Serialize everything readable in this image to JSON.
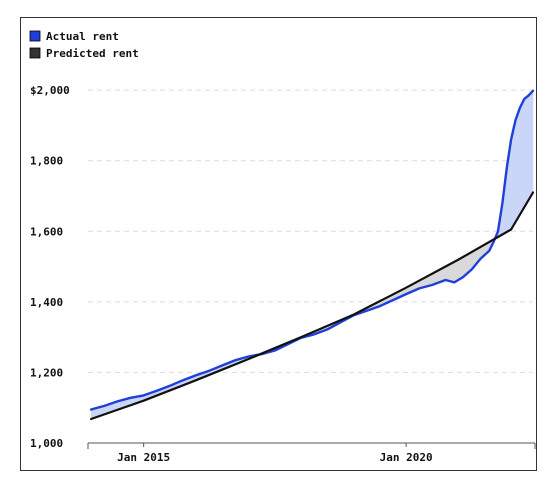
{
  "chart_data": {
    "type": "area",
    "title": "",
    "xlabel": "",
    "ylabel": "",
    "x_start": "Jan 2013",
    "x_end": "Jan 2023",
    "x_ticks": [
      {
        "date": "Jan 2015",
        "label": "Jan 2015"
      },
      {
        "date": "Jan 2020",
        "label": "Jan 2020"
      }
    ],
    "y_ticks": [
      {
        "value": 1000,
        "label": "1,000"
      },
      {
        "value": 1200,
        "label": "1,200"
      },
      {
        "value": 1400,
        "label": "1,400"
      },
      {
        "value": 1600,
        "label": "1,600"
      },
      {
        "value": 1800,
        "label": "1,800"
      },
      {
        "value": 2000,
        "label": "$2,000"
      }
    ],
    "ylim": [
      1000,
      2040
    ],
    "grid": "horizontal dashed",
    "legend_position": "top-left",
    "series": [
      {
        "name": "Actual rent",
        "color": "#1f3fd8",
        "points": [
          [
            "Jan 2014",
            1095
          ],
          [
            "Apr 2014",
            1105
          ],
          [
            "Jul 2014",
            1118
          ],
          [
            "Oct 2014",
            1128
          ],
          [
            "Jan 2015",
            1135
          ],
          [
            "Apr 2015",
            1148
          ],
          [
            "Jul 2015",
            1162
          ],
          [
            "Oct 2015",
            1178
          ],
          [
            "Jan 2016",
            1192
          ],
          [
            "Apr 2016",
            1205
          ],
          [
            "Jul 2016",
            1220
          ],
          [
            "Oct 2016",
            1235
          ],
          [
            "Jan 2017",
            1245
          ],
          [
            "Apr 2017",
            1252
          ],
          [
            "Jul 2017",
            1262
          ],
          [
            "Oct 2017",
            1280
          ],
          [
            "Jan 2018",
            1298
          ],
          [
            "Apr 2018",
            1308
          ],
          [
            "Jul 2018",
            1322
          ],
          [
            "Oct 2018",
            1342
          ],
          [
            "Jan 2019",
            1362
          ],
          [
            "Apr 2019",
            1375
          ],
          [
            "Jul 2019",
            1388
          ],
          [
            "Oct 2019",
            1405
          ],
          [
            "Jan 2020",
            1422
          ],
          [
            "Apr 2020",
            1438
          ],
          [
            "Jul 2020",
            1448
          ],
          [
            "Oct 2020",
            1462
          ],
          [
            "Dec 2020",
            1455
          ],
          [
            "Feb 2021",
            1470
          ],
          [
            "Apr 2021",
            1492
          ],
          [
            "Jun 2021",
            1522
          ],
          [
            "Aug 2021",
            1545
          ],
          [
            "Sep 2021",
            1570
          ],
          [
            "Oct 2021",
            1600
          ],
          [
            "Nov 2021",
            1680
          ],
          [
            "Dec 2021",
            1780
          ],
          [
            "Jan 2022",
            1860
          ],
          [
            "Feb 2022",
            1915
          ],
          [
            "Mar 2022",
            1950
          ],
          [
            "Apr 2022",
            1975
          ],
          [
            "May 2022",
            1985
          ],
          [
            "Jun 2022",
            1998
          ]
        ]
      },
      {
        "name": "Predicted rent",
        "color": "#111111",
        "points": [
          [
            "Jan 2014",
            1068
          ],
          [
            "Jan 2015",
            1120
          ],
          [
            "Jan 2016",
            1178
          ],
          [
            "Jan 2017",
            1238
          ],
          [
            "Jan 2018",
            1300
          ],
          [
            "Jan 2019",
            1364
          ],
          [
            "Jan 2020",
            1440
          ],
          [
            "Jan 2021",
            1520
          ],
          [
            "Jan 2022",
            1605
          ],
          [
            "Jun 2022",
            1710
          ]
        ]
      }
    ],
    "fills": {
      "actual_above_predicted": "#c9d6f7",
      "predicted_above_actual": "#d9d9d9"
    },
    "legend": [
      {
        "label": "Actual rent",
        "color": "#1f3fd8"
      },
      {
        "label": "Predicted rent",
        "color": "#333333"
      }
    ]
  }
}
